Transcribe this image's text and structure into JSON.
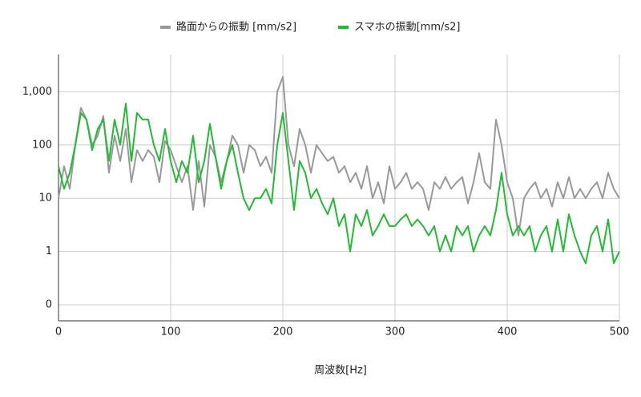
{
  "chart_data": {
    "type": "line",
    "x_label": "周波数[Hz]",
    "log_y": true,
    "grid": true,
    "legend": "top",
    "x": [
      0,
      5,
      10,
      15,
      20,
      25,
      30,
      35,
      40,
      45,
      50,
      55,
      60,
      65,
      70,
      75,
      80,
      85,
      90,
      95,
      100,
      105,
      110,
      115,
      120,
      125,
      130,
      135,
      140,
      145,
      150,
      155,
      160,
      165,
      170,
      175,
      180,
      185,
      190,
      195,
      200,
      205,
      210,
      215,
      220,
      225,
      230,
      235,
      240,
      245,
      250,
      255,
      260,
      265,
      270,
      275,
      280,
      285,
      290,
      295,
      300,
      305,
      310,
      315,
      320,
      325,
      330,
      335,
      340,
      345,
      350,
      355,
      360,
      365,
      370,
      375,
      380,
      385,
      390,
      395,
      400,
      405,
      410,
      415,
      420,
      425,
      430,
      435,
      440,
      445,
      450,
      455,
      460,
      465,
      470,
      475,
      480,
      485,
      490,
      495,
      500
    ],
    "series": [
      {
        "name": "路面からの振動 [mm/s2]",
        "color": "#999999",
        "values": [
          10,
          40,
          15,
          100,
          500,
          300,
          100,
          150,
          350,
          30,
          150,
          50,
          200,
          20,
          80,
          50,
          80,
          60,
          20,
          120,
          80,
          40,
          20,
          40,
          6,
          50,
          7,
          100,
          60,
          20,
          50,
          150,
          100,
          30,
          100,
          80,
          40,
          60,
          30,
          1000,
          1900,
          100,
          40,
          200,
          100,
          30,
          100,
          70,
          50,
          60,
          30,
          40,
          20,
          30,
          15,
          40,
          10,
          20,
          8,
          40,
          15,
          20,
          30,
          15,
          20,
          15,
          6,
          20,
          15,
          25,
          15,
          20,
          25,
          8,
          20,
          70,
          20,
          15,
          300,
          100,
          20,
          10,
          2,
          10,
          15,
          20,
          10,
          15,
          7,
          20,
          10,
          25,
          10,
          15,
          10,
          15,
          20,
          10,
          30,
          15,
          10
        ]
      },
      {
        "name": "スマホの振動[mm/s2]",
        "color": "#22bb33",
        "values": [
          40,
          15,
          30,
          100,
          400,
          300,
          80,
          200,
          300,
          50,
          300,
          100,
          600,
          50,
          400,
          300,
          300,
          100,
          50,
          200,
          50,
          20,
          50,
          30,
          150,
          20,
          50,
          250,
          60,
          15,
          50,
          100,
          30,
          10,
          6,
          10,
          10,
          15,
          8,
          100,
          400,
          50,
          6,
          50,
          30,
          10,
          15,
          8,
          5,
          10,
          3,
          5,
          1,
          5,
          3,
          6,
          2,
          3,
          5,
          3,
          3,
          4,
          5,
          3,
          4,
          3,
          2,
          3,
          1,
          2,
          1,
          3,
          2,
          3,
          1,
          2,
          3,
          2,
          6,
          30,
          5,
          2,
          3,
          2,
          3,
          1,
          2,
          3,
          1,
          4,
          1,
          5,
          2,
          1,
          0.6,
          2,
          3,
          1,
          4,
          0.6,
          1
        ]
      }
    ],
    "xlim": [
      0,
      500
    ],
    "xticks": [
      0,
      100,
      200,
      300,
      400,
      500
    ],
    "ylim": [
      0.05,
      5000
    ],
    "yticks": [
      {
        "value": 0.1,
        "label": "0"
      },
      1,
      10,
      100,
      {
        "value": 1000,
        "label": "1,000"
      }
    ]
  }
}
